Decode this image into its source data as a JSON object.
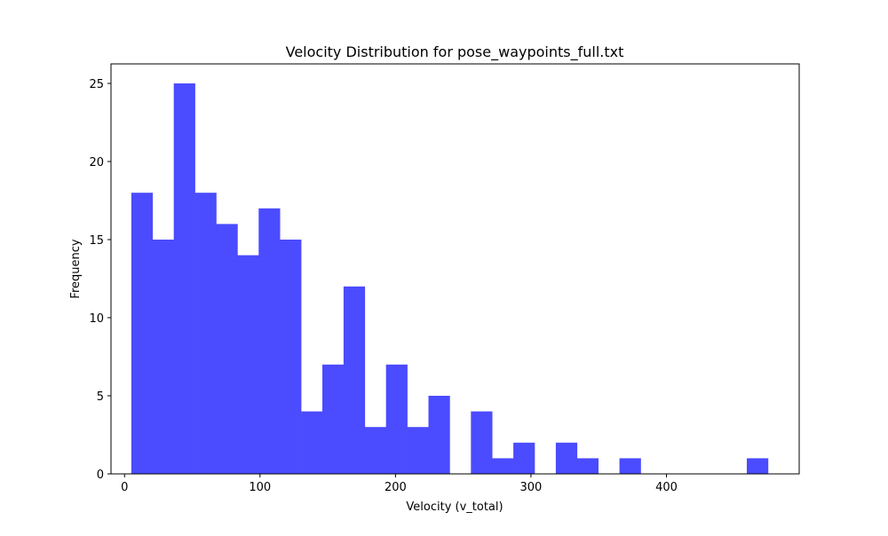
{
  "chart_data": {
    "type": "bar",
    "title": "Velocity Distribution for pose_waypoints_full.txt",
    "xlabel": "Velocity (v_total)",
    "ylabel": "Frequency",
    "xlim": [
      -10,
      498
    ],
    "ylim": [
      0,
      26.25
    ],
    "xticks": [
      0,
      100,
      200,
      300,
      400
    ],
    "yticks": [
      0,
      5,
      10,
      15,
      20,
      25
    ],
    "bin_width": 15.67,
    "bins": [
      {
        "x0": 5.0,
        "count": 18
      },
      {
        "x0": 20.67,
        "count": 15
      },
      {
        "x0": 36.33,
        "count": 25
      },
      {
        "x0": 52.0,
        "count": 18
      },
      {
        "x0": 67.67,
        "count": 16
      },
      {
        "x0": 83.33,
        "count": 14
      },
      {
        "x0": 99.0,
        "count": 17
      },
      {
        "x0": 114.67,
        "count": 15
      },
      {
        "x0": 130.33,
        "count": 4
      },
      {
        "x0": 146.0,
        "count": 7
      },
      {
        "x0": 161.67,
        "count": 12
      },
      {
        "x0": 177.33,
        "count": 3
      },
      {
        "x0": 193.0,
        "count": 7
      },
      {
        "x0": 208.67,
        "count": 3
      },
      {
        "x0": 224.33,
        "count": 5
      },
      {
        "x0": 240.0,
        "count": 0
      },
      {
        "x0": 255.67,
        "count": 4
      },
      {
        "x0": 271.33,
        "count": 1
      },
      {
        "x0": 287.0,
        "count": 2
      },
      {
        "x0": 302.67,
        "count": 0
      },
      {
        "x0": 318.33,
        "count": 2
      },
      {
        "x0": 334.0,
        "count": 1
      },
      {
        "x0": 349.67,
        "count": 0
      },
      {
        "x0": 365.33,
        "count": 1
      },
      {
        "x0": 381.0,
        "count": 0
      },
      {
        "x0": 396.67,
        "count": 0
      },
      {
        "x0": 412.33,
        "count": 0
      },
      {
        "x0": 428.0,
        "count": 0
      },
      {
        "x0": 443.67,
        "count": 0
      },
      {
        "x0": 459.33,
        "count": 1
      }
    ],
    "bar_color": "#4b4bff",
    "grid": false,
    "legend": "none"
  }
}
